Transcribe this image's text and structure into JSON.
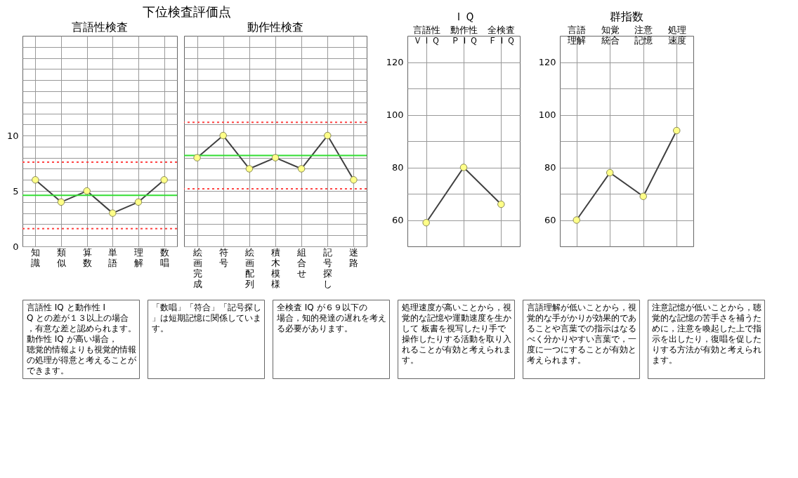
{
  "chart_data": [
    {
      "type": "line",
      "title": "下位検査評価点",
      "subtitle": "言語性検査",
      "categories": [
        "知識",
        "類似",
        "算数",
        "単語",
        "理解",
        "数唱"
      ],
      "series": [
        {
          "color": "#404040",
          "values": [
            6,
            4,
            5,
            3,
            4,
            6
          ]
        }
      ],
      "ylim": [
        0,
        19
      ],
      "yticks": [
        0,
        {
          "value": 1,
          "label": null
        },
        {
          "value": 2,
          "label": null
        },
        {
          "value": 3,
          "label": null
        },
        {
          "value": 4,
          "label": null
        },
        5,
        {
          "value": 6,
          "label": null
        },
        {
          "value": 7,
          "label": null
        },
        {
          "value": 8,
          "label": null
        },
        {
          "value": 9,
          "label": null
        },
        10,
        {
          "value": 11,
          "label": null
        },
        {
          "value": 12,
          "label": null
        },
        {
          "value": 13,
          "label": null
        },
        {
          "value": 14,
          "label": null
        },
        {
          "value": 15,
          "label": null
        },
        {
          "value": 16,
          "label": null
        },
        {
          "value": 17,
          "label": null
        },
        {
          "value": 18,
          "label": null
        }
      ],
      "marker": "circle",
      "grid": true,
      "ref_lines": [
        {
          "axis": "y",
          "value": 4.6,
          "color": "#33dd33",
          "line_style": "solid"
        },
        {
          "axis": "y",
          "value": 7.6,
          "color": "#ff4444",
          "line_style": "dotted"
        },
        {
          "axis": "y",
          "value": 1.6,
          "color": "#ff4444",
          "line_style": "dotted"
        }
      ]
    },
    {
      "type": "line",
      "subtitle": "動作性検査",
      "categories": [
        "絵画完成",
        "符号",
        "絵画配列",
        "積木模様",
        "組合せ",
        "記号探し",
        "迷路"
      ],
      "series": [
        {
          "color": "#404040",
          "values": [
            8,
            10,
            7,
            8,
            7,
            10,
            6
          ]
        }
      ],
      "ylim": [
        0,
        19
      ],
      "yticks": [
        0,
        {
          "value": 1,
          "label": null
        },
        {
          "value": 2,
          "label": null
        },
        {
          "value": 3,
          "label": null
        },
        {
          "value": 4,
          "label": null
        },
        5,
        {
          "value": 6,
          "label": null
        },
        {
          "value": 7,
          "label": null
        },
        {
          "value": 8,
          "label": null
        },
        {
          "value": 9,
          "label": null
        },
        10,
        {
          "value": 11,
          "label": null
        },
        {
          "value": 12,
          "label": null
        },
        {
          "value": 13,
          "label": null
        },
        {
          "value": 14,
          "label": null
        },
        {
          "value": 15,
          "label": null
        },
        {
          "value": 16,
          "label": null
        },
        {
          "value": 17,
          "label": null
        },
        {
          "value": 18,
          "label": null
        }
      ],
      "tick_labels": "x",
      "marker": "circle",
      "grid": true,
      "ref_lines": [
        {
          "axis": "y",
          "value": 8.2,
          "color": "#33dd33",
          "line_style": "solid"
        },
        {
          "axis": "y",
          "value": 11.2,
          "color": "#ff4444",
          "line_style": "dotted"
        },
        {
          "axis": "y",
          "value": 5.2,
          "color": "#ff4444",
          "line_style": "dotted"
        }
      ]
    },
    {
      "type": "line",
      "title": "ＩＱ",
      "categories": [
        "言語性ＶＩＱ",
        "動作性ＰＩＱ",
        "全検査ＦＩＱ"
      ],
      "series": [
        {
          "color": "#404040",
          "values": [
            59,
            80,
            66
          ]
        }
      ],
      "ylim": [
        50,
        130
      ],
      "yticks": [
        60,
        {
          "value": 70,
          "label": null
        },
        80,
        {
          "value": 90,
          "label": null
        },
        100,
        {
          "value": 110,
          "label": null
        },
        120
      ],
      "marker": "circle",
      "grid": true
    },
    {
      "type": "line",
      "title": "群指数",
      "categories": [
        "言語理解",
        "知覚統合",
        "注意記憶",
        "処理速度"
      ],
      "series": [
        {
          "color": "#404040",
          "values": [
            60,
            78,
            69,
            94
          ]
        }
      ],
      "ylim": [
        50,
        130
      ],
      "yticks": [
        60,
        {
          "value": 70,
          "label": null
        },
        80,
        {
          "value": 90,
          "label": null
        },
        100,
        {
          "value": 110,
          "label": null
        },
        120
      ],
      "marker": "circle",
      "grid": true
    },
    {
      "type": "other",
      "annotations": [
        "言語性 IQ と動作性 IQ との差が１３以上の場合，有意な差と認められます。動作性 IQ が高い場合，聴覚的情報よりも視覚的情報の処理が得意と考えることができます。",
        "「数唱」「符合」「記号探し」は短期記憶に関係しています。",
        "全検査 IQ が６９以下の場合，知的発達の遅れを考える必要があります。",
        "処理速度が高いことから，視覚的な記憶や運動速度を生かして 板書を視写したり手で操作したりする活動を取り入れることが有効と考えられます。",
        "言語理解が低いことから，視覚的な手がかりが効果的であることや言葉での指示はなるべく分かりやすい言葉で，一度に一つにすることが有効と考えられます。",
        "注意記憶が低いことから，聴覚的な記憶の苦手さを補うために，注意を喚起した上で指示を出したり，復唱を促したりする方法が有効と考えられます。"
      ]
    }
  ]
}
